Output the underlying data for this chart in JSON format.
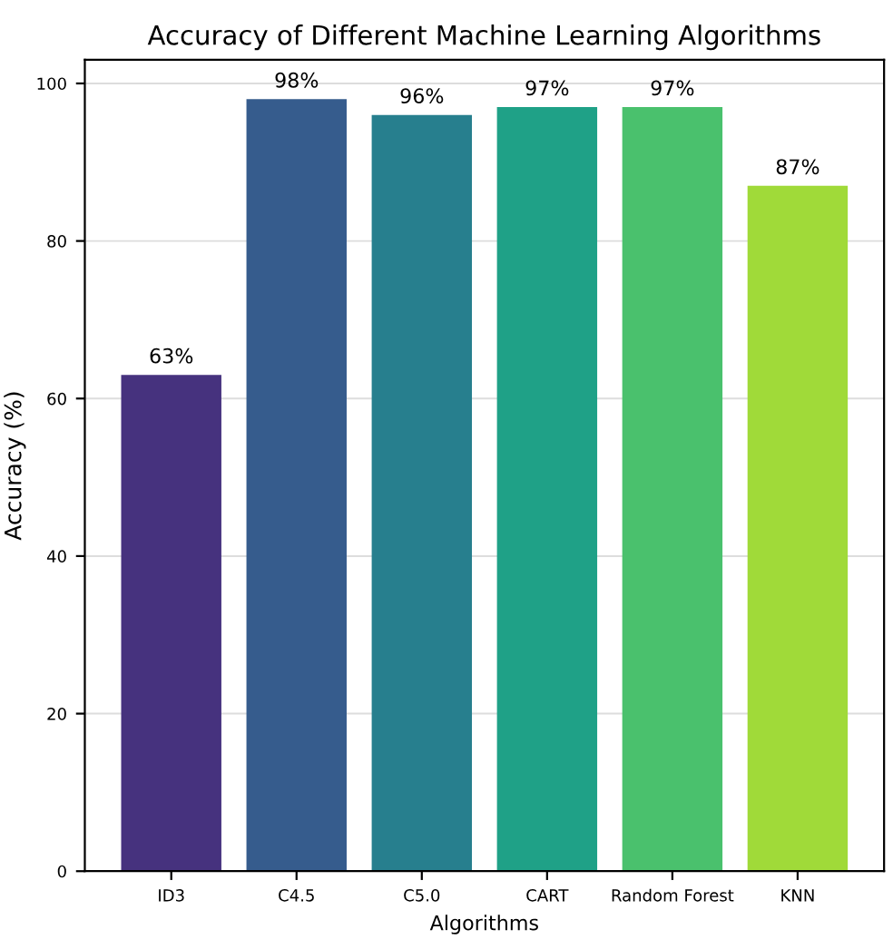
{
  "chart_data": {
    "type": "bar",
    "title": "Accuracy of Different Machine Learning Algorithms",
    "xlabel": "Algorithms",
    "ylabel": "Accuracy (%)",
    "categories": [
      "ID3",
      "C4.5",
      "C5.0",
      "CART",
      "Random Forest",
      "KNN"
    ],
    "values": [
      63,
      98,
      96,
      97,
      97,
      87
    ],
    "colors": [
      "#46327e",
      "#365c8d",
      "#277f8e",
      "#1fa187",
      "#4ac16d",
      "#a0da39"
    ],
    "value_labels": [
      "63%",
      "98%",
      "96%",
      "97%",
      "97%",
      "87%"
    ],
    "ylim": [
      0,
      103
    ],
    "yticks": [
      0,
      20,
      40,
      60,
      80,
      100
    ],
    "grid": "y"
  }
}
